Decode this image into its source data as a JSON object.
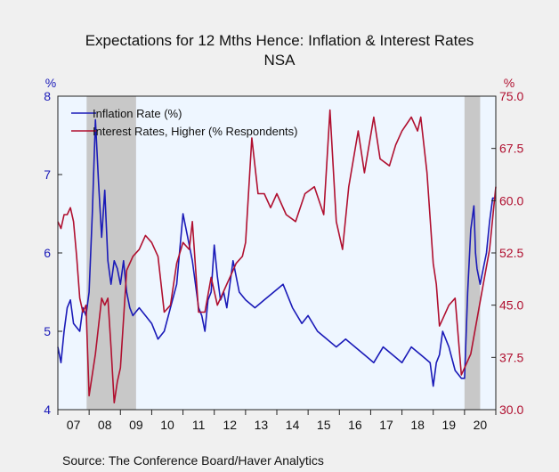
{
  "chart_data": {
    "type": "line",
    "title": "Expectations for 12 Mths Hence: Inflation & Interest Rates",
    "subtitle": "NSA",
    "left_axis": {
      "unit": "%",
      "ylim": [
        4,
        8
      ],
      "ticks": [
        "4",
        "5",
        "6",
        "7",
        "8"
      ],
      "color": "#1a1ab8"
    },
    "right_axis": {
      "unit": "%",
      "ylim": [
        30,
        75
      ],
      "ticks": [
        "30.0",
        "37.5",
        "45.0",
        "52.5",
        "60.0",
        "67.5",
        "75.0"
      ],
      "color": "#b01030"
    },
    "x_axis": {
      "start": 2007.0,
      "end": 2021.0,
      "tick_labels": [
        "07",
        "08",
        "09",
        "10",
        "11",
        "12",
        "13",
        "14",
        "15",
        "16",
        "17",
        "18",
        "19",
        "20"
      ]
    },
    "grid": false,
    "recessions": [
      [
        2007.92,
        2009.5
      ],
      [
        2020.0,
        2020.5
      ]
    ],
    "legend_position": "top-left",
    "source": "Source:  The Conference Board/Haver Analytics",
    "series": [
      {
        "name": "Inflation Rate (%)",
        "axis": "left",
        "color": "#1a1ab8",
        "x": [
          2007.0,
          2007.1,
          2007.2,
          2007.3,
          2007.4,
          2007.5,
          2007.6,
          2007.7,
          2007.8,
          2007.9,
          2008.0,
          2008.1,
          2008.2,
          2008.3,
          2008.4,
          2008.5,
          2008.6,
          2008.7,
          2008.8,
          2008.9,
          2009.0,
          2009.1,
          2009.2,
          2009.3,
          2009.4,
          2009.6,
          2009.8,
          2010.0,
          2010.2,
          2010.4,
          2010.6,
          2010.8,
          2011.0,
          2011.2,
          2011.3,
          2011.4,
          2011.5,
          2011.6,
          2011.7,
          2011.8,
          2011.9,
          2012.0,
          2012.1,
          2012.2,
          2012.3,
          2012.4,
          2012.5,
          2012.6,
          2012.8,
          2013.0,
          2013.3,
          2013.6,
          2013.9,
          2014.2,
          2014.5,
          2014.8,
          2015.0,
          2015.3,
          2015.6,
          2015.9,
          2016.2,
          2016.5,
          2016.8,
          2017.1,
          2017.4,
          2017.7,
          2018.0,
          2018.3,
          2018.6,
          2018.9,
          2019.0,
          2019.1,
          2019.2,
          2019.3,
          2019.5,
          2019.7,
          2019.9,
          2020.0,
          2020.1,
          2020.2,
          2020.3,
          2020.35,
          2020.4,
          2020.5,
          2020.6,
          2020.7,
          2020.8,
          2020.9,
          2021.0
        ],
        "values": [
          4.8,
          4.6,
          5.0,
          5.3,
          5.4,
          5.1,
          5.05,
          5.0,
          5.3,
          5.2,
          5.5,
          6.5,
          7.7,
          6.9,
          6.2,
          6.8,
          5.9,
          5.6,
          5.9,
          5.8,
          5.6,
          5.9,
          5.5,
          5.3,
          5.2,
          5.3,
          5.2,
          5.1,
          4.9,
          5.0,
          5.3,
          5.6,
          6.5,
          6.1,
          5.9,
          5.6,
          5.3,
          5.2,
          5.0,
          5.4,
          5.5,
          6.1,
          5.7,
          5.4,
          5.5,
          5.3,
          5.6,
          5.9,
          5.5,
          5.4,
          5.3,
          5.4,
          5.5,
          5.6,
          5.3,
          5.1,
          5.2,
          5.0,
          4.9,
          4.8,
          4.9,
          4.8,
          4.7,
          4.6,
          4.8,
          4.7,
          4.6,
          4.8,
          4.7,
          4.6,
          4.3,
          4.6,
          4.7,
          5.0,
          4.8,
          4.5,
          4.4,
          4.4,
          5.5,
          6.3,
          6.6,
          6.0,
          5.8,
          5.6,
          5.8,
          6.0,
          6.4,
          6.7,
          6.7
        ]
      },
      {
        "name": "Interest Rates, Higher (% Respondents)",
        "axis": "right",
        "color": "#b01030",
        "x": [
          2007.0,
          2007.1,
          2007.2,
          2007.3,
          2007.4,
          2007.5,
          2007.6,
          2007.7,
          2007.8,
          2007.9,
          2008.0,
          2008.2,
          2008.4,
          2008.5,
          2008.6,
          2008.7,
          2008.8,
          2008.9,
          2009.0,
          2009.2,
          2009.4,
          2009.6,
          2009.8,
          2010.0,
          2010.2,
          2010.4,
          2010.6,
          2010.8,
          2011.0,
          2011.2,
          2011.3,
          2011.5,
          2011.7,
          2011.9,
          2012.1,
          2012.3,
          2012.5,
          2012.7,
          2012.9,
          2013.0,
          2013.2,
          2013.4,
          2013.6,
          2013.8,
          2014.0,
          2014.3,
          2014.6,
          2014.9,
          2015.2,
          2015.5,
          2015.7,
          2015.9,
          2016.1,
          2016.3,
          2016.6,
          2016.8,
          2017.1,
          2017.3,
          2017.6,
          2017.8,
          2018.0,
          2018.3,
          2018.5,
          2018.6,
          2018.8,
          2019.0,
          2019.1,
          2019.2,
          2019.3,
          2019.5,
          2019.7,
          2019.9,
          2020.0,
          2020.2,
          2020.4,
          2020.6,
          2020.8,
          2021.0
        ],
        "values": [
          57,
          56,
          58,
          58,
          59,
          57,
          52,
          46,
          44,
          45,
          32,
          38,
          46,
          45,
          46,
          39,
          31,
          34,
          36,
          50,
          52,
          53,
          55,
          54,
          52,
          44,
          45,
          51,
          54,
          53,
          57,
          44,
          44,
          49,
          45,
          47,
          49,
          51,
          52,
          54,
          69,
          61,
          61,
          59,
          61,
          58,
          57,
          61,
          62,
          58,
          73,
          57,
          53,
          62,
          70,
          64,
          72,
          66,
          65,
          68,
          70,
          72,
          70,
          72,
          64,
          51,
          48,
          42,
          43,
          45,
          46,
          35,
          36,
          38,
          43,
          48,
          53,
          62
        ]
      }
    ]
  }
}
